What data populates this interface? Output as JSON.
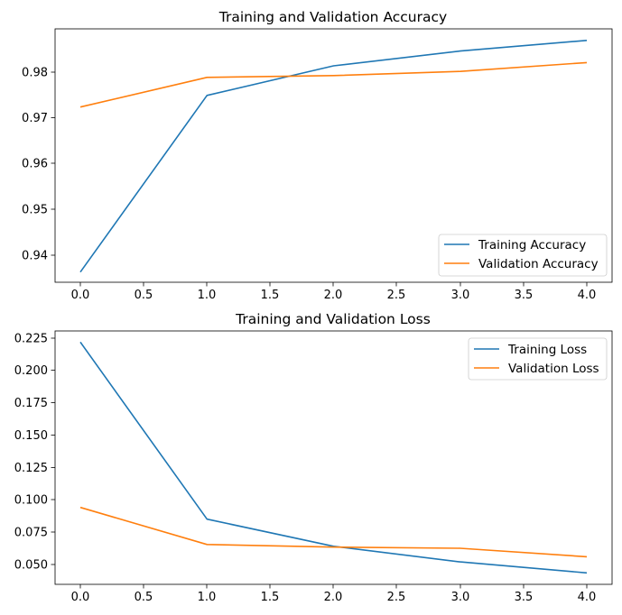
{
  "chart_data": [
    {
      "type": "line",
      "title": "Training and Validation Accuracy",
      "xlabel": "",
      "ylabel": "",
      "x": [
        0,
        1,
        2,
        3,
        4
      ],
      "xlim": [
        -0.2,
        4.2
      ],
      "ylim": [
        0.9345,
        0.9893
      ],
      "xticks": [
        "0.0",
        "0.5",
        "1.0",
        "1.5",
        "2.0",
        "2.5",
        "3.0",
        "3.5",
        "4.0"
      ],
      "yticks": [
        "0.94",
        "0.95",
        "0.96",
        "0.97",
        "0.98"
      ],
      "legend_position": "lower-right",
      "series": [
        {
          "name": "Training Accuracy",
          "color": "#1f77b4",
          "values": [
            0.9367,
            0.9749,
            0.9813,
            0.9845,
            0.9868
          ]
        },
        {
          "name": "Validation Accuracy",
          "color": "#ff7f0e",
          "values": [
            0.9724,
            0.9788,
            0.9792,
            0.9801,
            0.982
          ]
        }
      ]
    },
    {
      "type": "line",
      "title": "Training and Validation Loss",
      "xlabel": "",
      "ylabel": "",
      "x": [
        0,
        1,
        2,
        3,
        4
      ],
      "xlim": [
        -0.2,
        4.2
      ],
      "ylim": [
        0.0353,
        0.2297
      ],
      "xticks": [
        "0.0",
        "0.5",
        "1.0",
        "1.5",
        "2.0",
        "2.5",
        "3.0",
        "3.5",
        "4.0"
      ],
      "yticks": [
        "0.050",
        "0.075",
        "0.100",
        "0.125",
        "0.150",
        "0.175",
        "0.200",
        "0.225"
      ],
      "legend_position": "upper-right",
      "series": [
        {
          "name": "Training Loss",
          "color": "#1f77b4",
          "values": [
            0.2211,
            0.0853,
            0.0645,
            0.0525,
            0.0441
          ]
        },
        {
          "name": "Validation Loss",
          "color": "#ff7f0e",
          "values": [
            0.0943,
            0.0659,
            0.0639,
            0.063,
            0.0565
          ]
        }
      ]
    }
  ]
}
